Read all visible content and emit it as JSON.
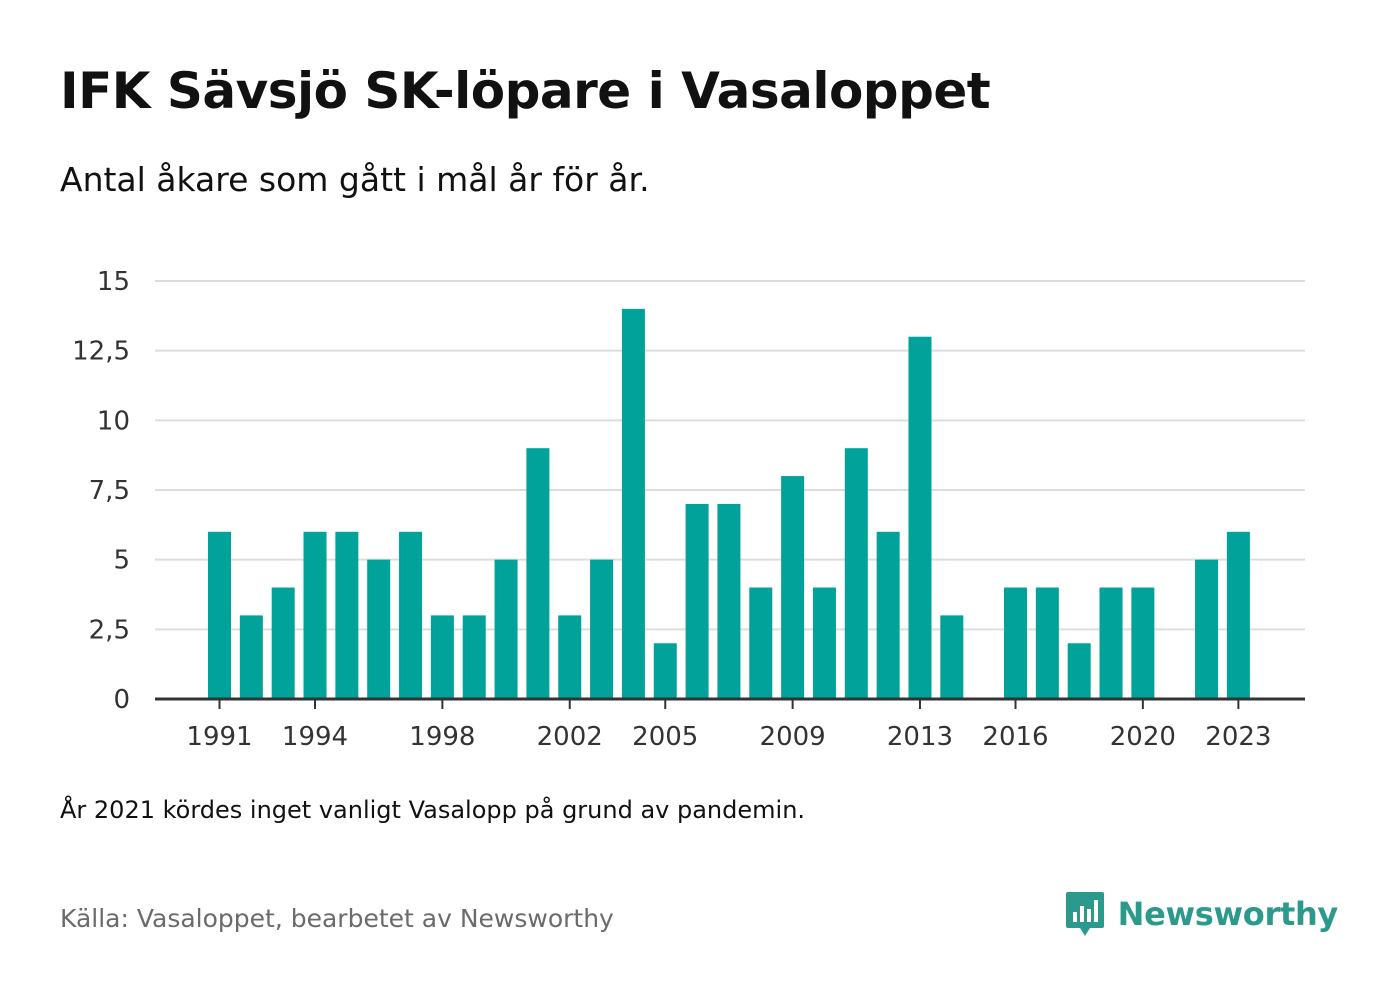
{
  "title": "IFK Sävsjö SK-löpare i Vasaloppet",
  "subtitle": "Antal åkare som gått i mål år för år.",
  "note": "År 2021 kördes inget vanligt Vasalopp på grund av pandemin.",
  "source": "Källa: Vasaloppet, bearbetet av Newsworthy",
  "brand": {
    "name": "Newsworthy",
    "icon": "newsworthy-logo-icon",
    "color": "#2b9a8c"
  },
  "colors": {
    "bar": "#00a29a",
    "grid": "#dddddd",
    "axis": "#333333"
  },
  "chart_data": {
    "type": "bar",
    "x": [
      1991,
      1992,
      1993,
      1994,
      1995,
      1996,
      1997,
      1998,
      1999,
      2000,
      2001,
      2002,
      2003,
      2004,
      2005,
      2006,
      2007,
      2008,
      2009,
      2010,
      2011,
      2012,
      2013,
      2014,
      2015,
      2016,
      2017,
      2018,
      2019,
      2020,
      2021,
      2022,
      2023
    ],
    "values": [
      6,
      3,
      4,
      6,
      6,
      5,
      6,
      3,
      3,
      5,
      9,
      3,
      5,
      14,
      2,
      7,
      7,
      4,
      8,
      4,
      9,
      6,
      13,
      3,
      0,
      4,
      4,
      2,
      4,
      4,
      0,
      5,
      6
    ],
    "x_tick_labels": [
      "1991",
      "1994",
      "1998",
      "2002",
      "2005",
      "2009",
      "2013",
      "2016",
      "2020",
      "2023"
    ],
    "y_ticks": [
      0,
      2.5,
      5,
      7.5,
      10,
      12.5,
      15
    ],
    "y_tick_labels": [
      "0",
      "2,5",
      "5",
      "7,5",
      "10",
      "12,5",
      "15"
    ],
    "ylim": [
      0,
      15
    ],
    "grid": true
  }
}
